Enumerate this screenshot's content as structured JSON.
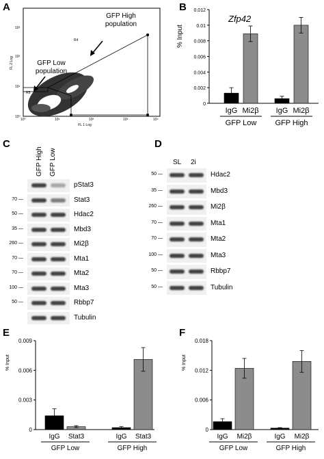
{
  "panels": {
    "A": {
      "letter": "A",
      "xlabel": "FL 1 Log",
      "ylabel": "FL 2 Log",
      "x_ticks": [
        "10⁰",
        "10¹",
        "10²",
        "10³",
        "10⁴"
      ],
      "y_ticks": [
        "10⁰",
        "10¹",
        "10²",
        "10³"
      ],
      "gates": [
        "R4",
        "R5"
      ],
      "annotations": [
        "GFP High population",
        "GFP Low population"
      ]
    },
    "B": {
      "letter": "B",
      "gene": "Zfp42",
      "ylabel": "% Input",
      "y_ticks": [
        "0",
        "0.002",
        "0.004",
        "0.006",
        "0.008",
        "0.01",
        "0.012"
      ],
      "bar_labels": [
        "IgG",
        "Mi2β",
        "IgG",
        "Mi2β"
      ],
      "groups": [
        "GFP Low",
        "GFP High"
      ]
    },
    "C": {
      "letter": "C",
      "lanes": [
        "GFP High",
        "GFP Low"
      ],
      "bands": [
        {
          "label": "pStat3",
          "mw": ""
        },
        {
          "label": "Stat3",
          "mw": "70"
        },
        {
          "label": "Hdac2",
          "mw": "50"
        },
        {
          "label": "Mbd3",
          "mw": "35"
        },
        {
          "label": "Mi2β",
          "mw": "260"
        },
        {
          "label": "Mta1",
          "mw": "70"
        },
        {
          "label": "Mta2",
          "mw": "70"
        },
        {
          "label": "Mta3",
          "mw": "100"
        },
        {
          "label": "Rbbp7",
          "mw": "50"
        },
        {
          "label": "Tubulin",
          "mw": ""
        }
      ],
      "extra_mw": "70"
    },
    "D": {
      "letter": "D",
      "lanes": [
        "SL",
        "2i"
      ],
      "bands": [
        {
          "label": "Hdac2",
          "mw": "50"
        },
        {
          "label": "Mbd3",
          "mw": "35"
        },
        {
          "label": "Mi2β",
          "mw": "260"
        },
        {
          "label": "Mta1",
          "mw": "70"
        },
        {
          "label": "Mta2",
          "mw": "70"
        },
        {
          "label": "Mta3",
          "mw": "100"
        },
        {
          "label": "Rbbp7",
          "mw": "50"
        },
        {
          "label": "Tubulin",
          "mw": "50"
        }
      ]
    },
    "E": {
      "letter": "E",
      "ylabel": "% Input",
      "y_ticks": [
        "0",
        "0.003",
        "0.006",
        "0.009"
      ],
      "bar_labels": [
        "IgG",
        "Stat3",
        "IgG",
        "Stat3"
      ],
      "groups": [
        "GFP Low",
        "GFP High"
      ]
    },
    "F": {
      "letter": "F",
      "ylabel": "% Input",
      "y_ticks": [
        "0",
        "0.006",
        "0.012",
        "0.018"
      ],
      "bar_labels": [
        "IgG",
        "Mi2β",
        "IgG",
        "Mi2β"
      ],
      "groups": [
        "GFP Low",
        "GFP High"
      ]
    }
  },
  "chart_data": [
    {
      "type": "bar",
      "id": "B",
      "title": "Zfp42",
      "ylabel": "% Input",
      "ylim": [
        0,
        0.012
      ],
      "categories": [
        "IgG",
        "Mi2β",
        "IgG",
        "Mi2β"
      ],
      "groups": [
        "GFP Low",
        "GFP High"
      ],
      "values": [
        0.0013,
        0.0089,
        0.0006,
        0.01
      ],
      "errors": [
        0.0007,
        0.001,
        0.0003,
        0.001
      ],
      "colors": [
        "#000000",
        "#8c8c8c",
        "#000000",
        "#8c8c8c"
      ]
    },
    {
      "type": "bar",
      "id": "E",
      "ylabel": "% Input",
      "ylim": [
        0,
        0.009
      ],
      "categories": [
        "IgG",
        "Stat3",
        "IgG",
        "Stat3"
      ],
      "groups": [
        "GFP Low",
        "GFP High"
      ],
      "values": [
        0.0014,
        0.0003,
        0.0002,
        0.0071
      ],
      "errors": [
        0.0007,
        0.0001,
        0.0001,
        0.0012
      ],
      "colors": [
        "#000000",
        "#8c8c8c",
        "#000000",
        "#8c8c8c"
      ]
    },
    {
      "type": "bar",
      "id": "F",
      "ylabel": "% Input",
      "ylim": [
        0,
        0.018
      ],
      "categories": [
        "IgG",
        "Mi2β",
        "IgG",
        "Mi2β"
      ],
      "groups": [
        "GFP Low",
        "GFP High"
      ],
      "values": [
        0.0016,
        0.0124,
        0.0003,
        0.0138
      ],
      "errors": [
        0.0006,
        0.002,
        0.0001,
        0.0022
      ],
      "colors": [
        "#000000",
        "#8c8c8c",
        "#000000",
        "#8c8c8c"
      ]
    }
  ]
}
